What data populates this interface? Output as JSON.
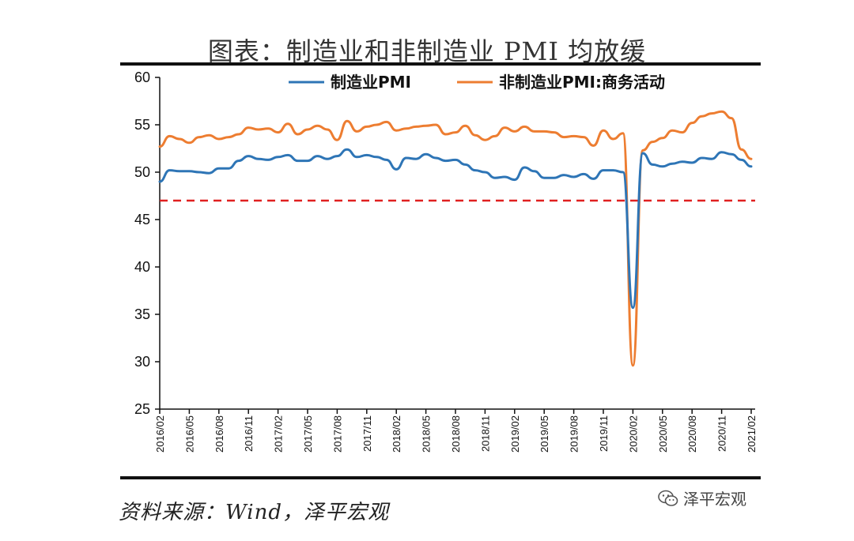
{
  "title": "图表：制造业和非制造业 PMI 均放缓",
  "source": "资料来源：Wind，泽平宏观",
  "watermark": {
    "text": "泽平宏观",
    "icon": "wechat-icon"
  },
  "chart_data": {
    "type": "line",
    "title": "图表：制造业和非制造业 PMI 均放缓",
    "xlabel": "",
    "ylabel": "",
    "ylim": [
      25,
      60
    ],
    "yticks": [
      25,
      30,
      35,
      40,
      45,
      50,
      55,
      60
    ],
    "legend_position": "top",
    "reference_line": {
      "value": 47,
      "style": "dashed",
      "color": "#e02020"
    },
    "x": [
      "2016/02",
      "2016/03",
      "2016/04",
      "2016/05",
      "2016/06",
      "2016/07",
      "2016/08",
      "2016/09",
      "2016/10",
      "2016/11",
      "2016/12",
      "2017/01",
      "2017/02",
      "2017/03",
      "2017/04",
      "2017/05",
      "2017/06",
      "2017/07",
      "2017/08",
      "2017/09",
      "2017/10",
      "2017/11",
      "2017/12",
      "2018/01",
      "2018/02",
      "2018/03",
      "2018/04",
      "2018/05",
      "2018/06",
      "2018/07",
      "2018/08",
      "2018/09",
      "2018/10",
      "2018/11",
      "2018/12",
      "2019/01",
      "2019/02",
      "2019/03",
      "2019/04",
      "2019/05",
      "2019/06",
      "2019/07",
      "2019/08",
      "2019/09",
      "2019/10",
      "2019/11",
      "2019/12",
      "2020/01",
      "2020/02",
      "2020/03",
      "2020/04",
      "2020/05",
      "2020/06",
      "2020/07",
      "2020/08",
      "2020/09",
      "2020/10",
      "2020/11",
      "2020/12",
      "2021/01",
      "2021/02"
    ],
    "xtick_labels": [
      "2016/02",
      "2016/05",
      "2016/08",
      "2016/11",
      "2017/02",
      "2017/05",
      "2017/08",
      "2017/11",
      "2018/02",
      "2018/05",
      "2018/08",
      "2018/11",
      "2019/02",
      "2019/05",
      "2019/08",
      "2019/11",
      "2020/02",
      "2020/05",
      "2020/08",
      "2020/11",
      "2021/02"
    ],
    "series": [
      {
        "name": "制造业PMI",
        "color": "#2e75b6",
        "values": [
          49.0,
          50.2,
          50.1,
          50.1,
          50.0,
          49.9,
          50.4,
          50.4,
          51.2,
          51.7,
          51.4,
          51.3,
          51.6,
          51.8,
          51.2,
          51.2,
          51.7,
          51.4,
          51.7,
          52.4,
          51.6,
          51.8,
          51.6,
          51.3,
          50.3,
          51.5,
          51.4,
          51.9,
          51.5,
          51.2,
          51.3,
          50.8,
          50.2,
          50.0,
          49.4,
          49.5,
          49.2,
          50.5,
          50.1,
          49.4,
          49.4,
          49.7,
          49.5,
          49.8,
          49.3,
          50.2,
          50.2,
          50.0,
          35.7,
          52.0,
          50.8,
          50.6,
          50.9,
          51.1,
          51.0,
          51.5,
          51.4,
          52.1,
          51.9,
          51.3,
          50.6
        ]
      },
      {
        "name": "非制造业PMI:商务活动",
        "color": "#ed7d31",
        "values": [
          52.7,
          53.8,
          53.5,
          53.1,
          53.7,
          53.9,
          53.5,
          53.7,
          54.0,
          54.7,
          54.5,
          54.6,
          54.2,
          55.1,
          54.0,
          54.5,
          54.9,
          54.5,
          53.4,
          55.4,
          54.3,
          54.8,
          55.0,
          55.3,
          54.4,
          54.6,
          54.8,
          54.9,
          55.0,
          54.0,
          54.2,
          54.9,
          53.9,
          53.4,
          53.8,
          54.7,
          54.3,
          54.8,
          54.3,
          54.3,
          54.2,
          53.7,
          53.8,
          53.7,
          52.8,
          54.4,
          53.5,
          54.1,
          29.6,
          52.3,
          53.2,
          53.6,
          54.4,
          54.2,
          55.2,
          55.9,
          56.2,
          56.4,
          55.7,
          52.4,
          51.4
        ]
      }
    ]
  }
}
